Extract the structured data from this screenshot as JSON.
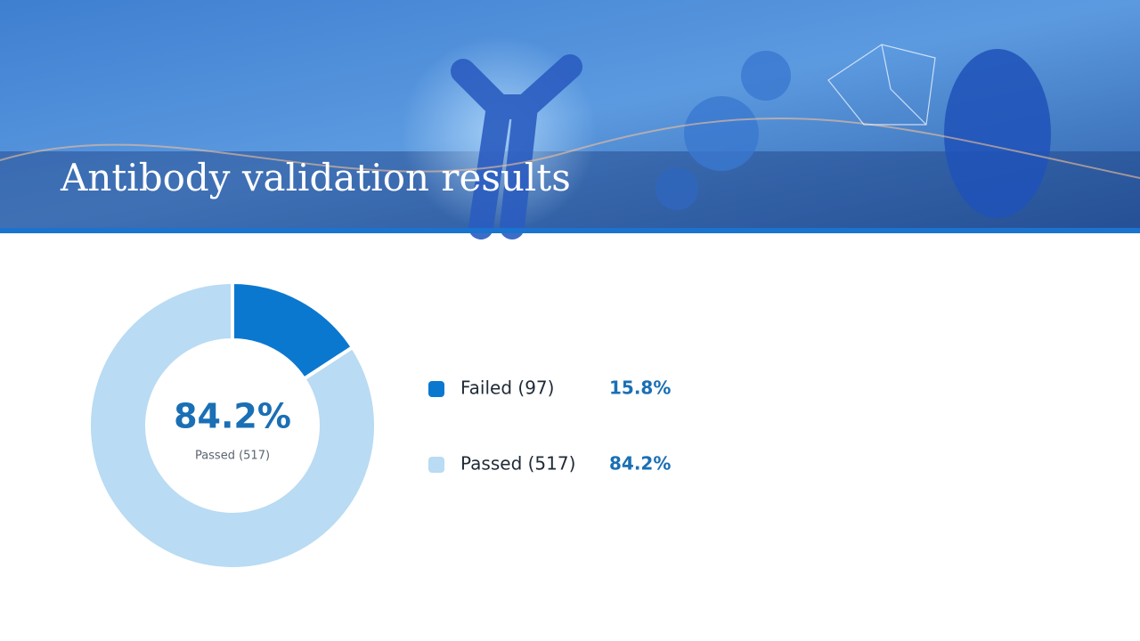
{
  "chart_data": {
    "type": "pie",
    "donut": true,
    "title": "Antibody validation results",
    "categories": [
      "Failed (97)",
      "Passed (517)"
    ],
    "values": [
      15.8,
      84.2
    ],
    "value_labels": [
      "15.8%",
      "84.2%"
    ],
    "colors": [
      "#0b78d0",
      "#b9dbf3"
    ]
  }
}
